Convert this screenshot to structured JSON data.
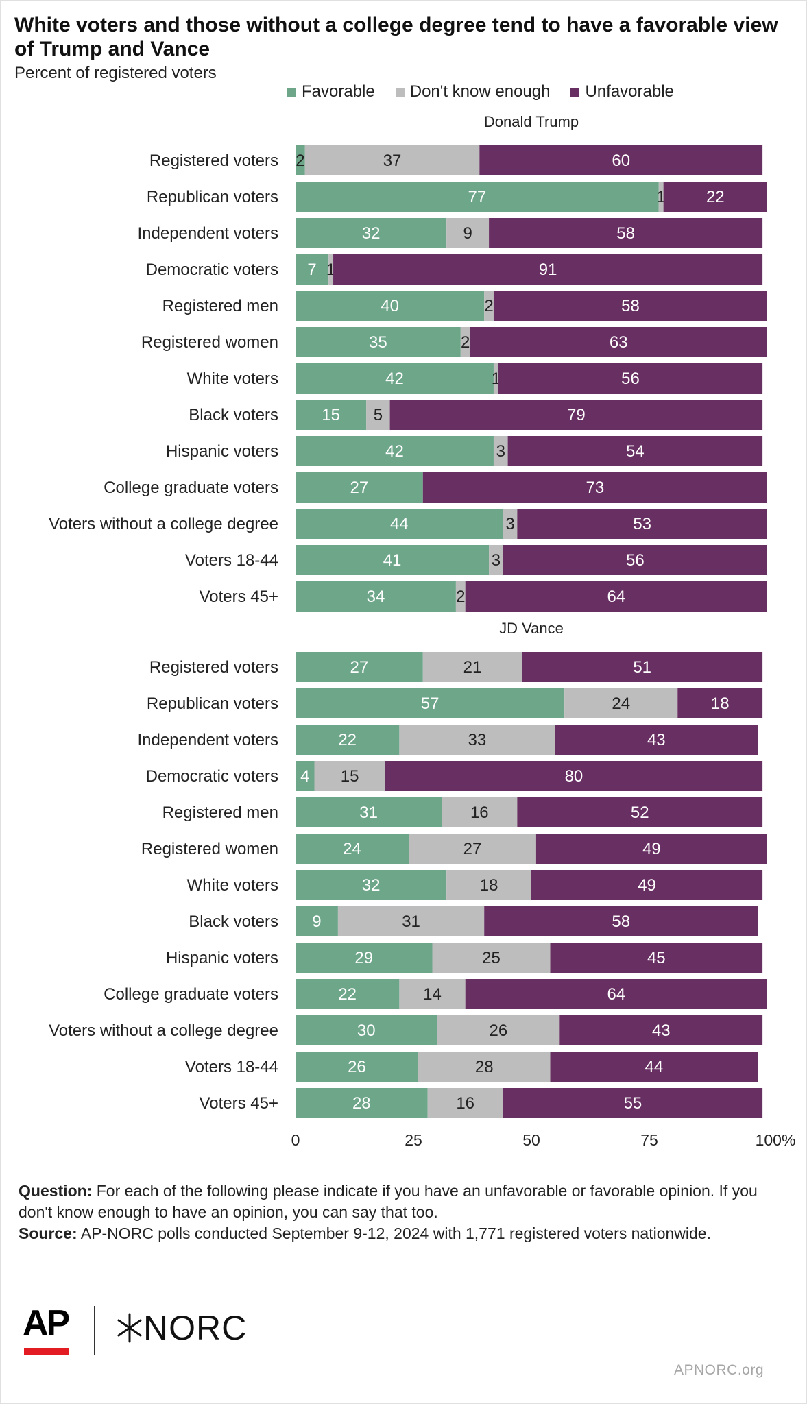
{
  "title": "White voters and those without a college degree tend to have a favorable view of Trump and Vance",
  "subtitle": "Percent of registered voters",
  "legend": [
    {
      "name": "Favorable",
      "color": "#6ea68a"
    },
    {
      "name": "Don't know enough",
      "color": "#bdbdbd"
    },
    {
      "name": "Unfavorable",
      "color": "#682f62"
    }
  ],
  "chart_data": {
    "type": "bar",
    "orientation": "horizontal",
    "stacked": true,
    "xlim": [
      0,
      100
    ],
    "x_ticks": [
      "0",
      "25",
      "50",
      "75",
      "100%"
    ],
    "categories": [
      "Registered voters",
      "Republican voters",
      "Independent voters",
      "Democratic voters",
      "Registered men",
      "Registered women",
      "White voters",
      "Black voters",
      "Hispanic voters",
      "College graduate voters",
      "Voters without a college degree",
      "Voters 18-44",
      "Voters  45+"
    ],
    "series_names": [
      "Favorable",
      "Don't know enough",
      "Unfavorable"
    ],
    "colors": {
      "Favorable": "#6ea68a",
      "Don't know enough": "#bdbdbd",
      "Unfavorable": "#682f62"
    },
    "legend_position": "top",
    "grid": false,
    "panels": [
      {
        "title": "Donald Trump",
        "series": [
          {
            "name": "Favorable",
            "values": [
              2,
              77,
              32,
              7,
              40,
              35,
              42,
              15,
              42,
              27,
              44,
              41,
              34
            ]
          },
          {
            "name": "Don't know enough",
            "values": [
              37,
              1,
              9,
              1,
              2,
              2,
              1,
              5,
              3,
              null,
              3,
              3,
              2
            ]
          },
          {
            "name": "Unfavorable",
            "values": [
              60,
              22,
              58,
              91,
              58,
              63,
              56,
              79,
              54,
              73,
              53,
              56,
              64
            ]
          }
        ]
      },
      {
        "title": "JD Vance",
        "series": [
          {
            "name": "Favorable",
            "values": [
              27,
              57,
              22,
              4,
              31,
              24,
              32,
              9,
              29,
              22,
              30,
              26,
              28
            ]
          },
          {
            "name": "Don't know enough",
            "values": [
              21,
              24,
              33,
              15,
              16,
              27,
              18,
              31,
              25,
              14,
              26,
              28,
              16
            ]
          },
          {
            "name": "Unfavorable",
            "values": [
              51,
              18,
              43,
              80,
              52,
              49,
              49,
              58,
              45,
              64,
              43,
              44,
              55
            ]
          }
        ]
      }
    ]
  },
  "notes": {
    "question_label": "Question:",
    "question_text": "For each of the following please indicate if you have an unfavorable or favorable opinion. If you don't know enough to have an opinion, you can say that too.",
    "source_label": "Source:",
    "source_text": "AP-NORC polls conducted September 9-12, 2024 with 1,771 registered voters nationwide."
  },
  "logos": {
    "ap": "AP",
    "norc": "NORC"
  },
  "footer_url": "APNORC.org"
}
